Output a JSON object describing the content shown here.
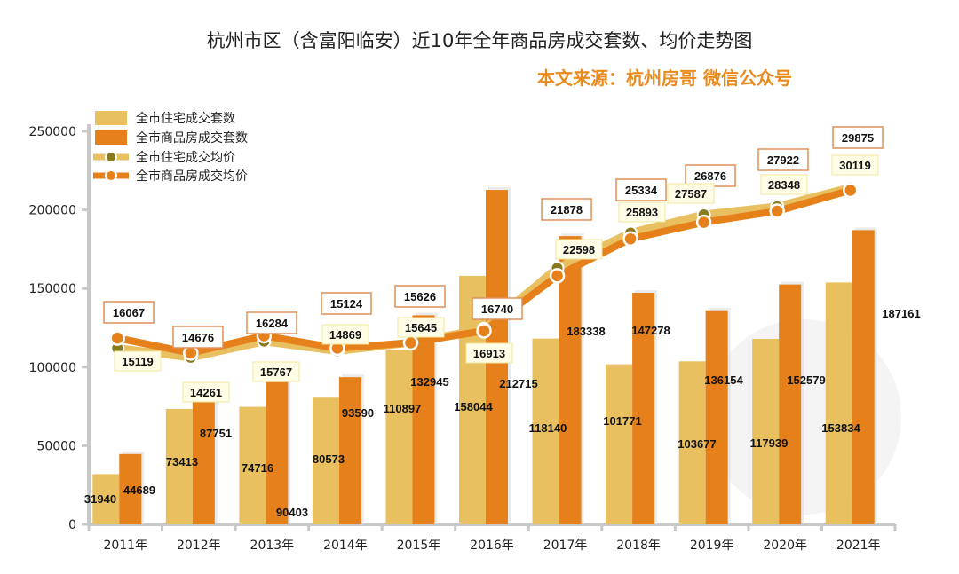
{
  "chart_data": {
    "type": "bar+line",
    "title": "杭州市区（含富阳临安）近10年全年商品房成交套数、均价走势图",
    "subtitle": "本文来源：杭州房哥 微信公众号",
    "categories": [
      "2011年",
      "2012年",
      "2013年",
      "2014年",
      "2015年",
      "2016年",
      "2017年",
      "2018年",
      "2019年",
      "2020年",
      "2021年"
    ],
    "ylim": [
      0,
      250000
    ],
    "yticks": [
      "0",
      "50000",
      "100000",
      "150000",
      "200000",
      "250000"
    ],
    "secondary_axis_visible": false,
    "legend_position": "top-left",
    "series": [
      {
        "name": "全市住宅成交套数",
        "type": "bar",
        "color": "#e8c060",
        "values": [
          31940,
          73413,
          74716,
          80573,
          110897,
          158044,
          118140,
          101771,
          103677,
          117939,
          153834
        ]
      },
      {
        "name": "全市商品房成交套数",
        "type": "bar",
        "color": "#e5801a",
        "values": [
          44689,
          87751,
          90403,
          93590,
          132945,
          212715,
          183338,
          147278,
          136154,
          152579,
          187161
        ]
      },
      {
        "name": "全市住宅成交均价",
        "type": "line",
        "color": "#e8c060",
        "marker": "#8a7a1e",
        "values": [
          15119,
          14261,
          15767,
          14869,
          15645,
          16913,
          22598,
          25893,
          27587,
          28348,
          30119
        ]
      },
      {
        "name": "全市商品房成交均价",
        "type": "line",
        "color": "#e5801a",
        "marker": "#e5801a",
        "values": [
          16067,
          14676,
          16284,
          15124,
          15626,
          16740,
          21878,
          25334,
          26876,
          27922,
          29875
        ]
      }
    ]
  }
}
